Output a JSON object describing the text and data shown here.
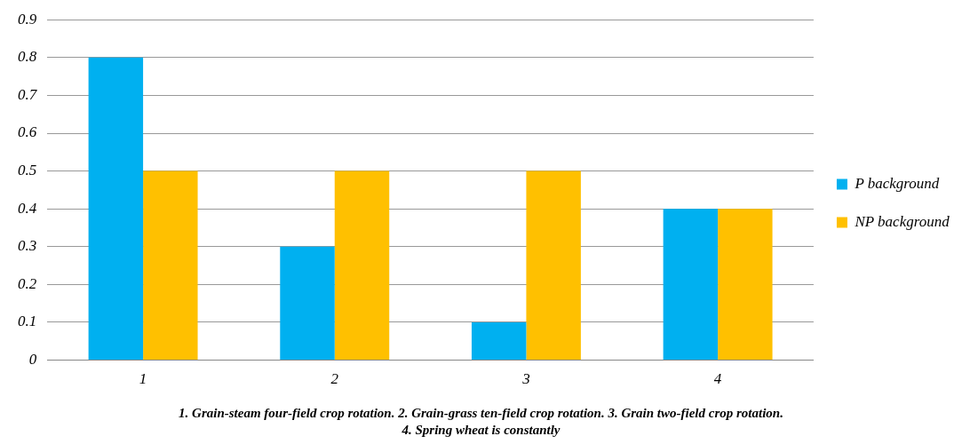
{
  "chart_data": {
    "type": "bar",
    "categories": [
      "1",
      "2",
      "3",
      "4"
    ],
    "series": [
      {
        "name": "P background",
        "color": "#00b0f0",
        "values": [
          0.8,
          0.3,
          0.1,
          0.4
        ]
      },
      {
        "name": "NP background",
        "color": "#ffc000",
        "values": [
          0.5,
          0.5,
          0.5,
          0.4
        ]
      }
    ],
    "ylim": [
      0,
      0.9
    ],
    "yticks": [
      0,
      0.1,
      0.2,
      0.3,
      0.4,
      0.5,
      0.6,
      0.7,
      0.8,
      0.9
    ],
    "grid": "y",
    "legend": "right",
    "annotations": [
      "1. Grain-steam four-field crop rotation. 2. Grain-grass ten-field crop rotation. 3. Grain two-field crop rotation.",
      "4. Spring wheat is constantly"
    ]
  }
}
